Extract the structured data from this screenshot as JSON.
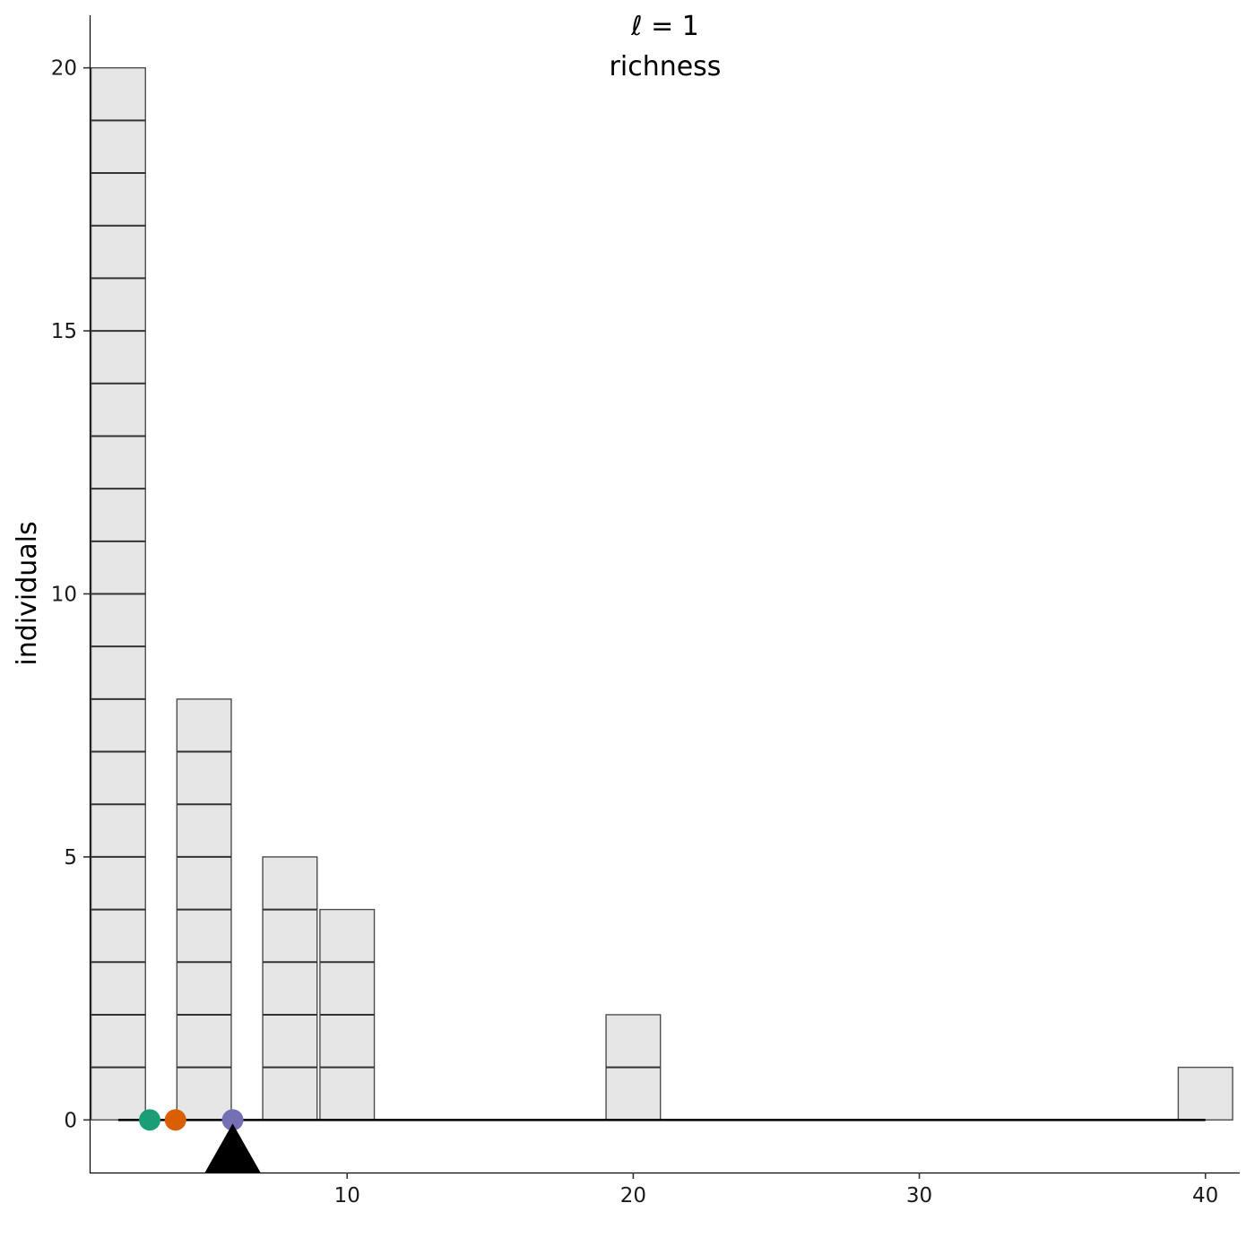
{
  "chart_data": {
    "type": "dotplot",
    "title": "ℓ = 1",
    "subtitle": "richness",
    "ylabel": "individuals",
    "xlabel": "",
    "xlim": [
      1,
      41.2
    ],
    "ylim": [
      -1,
      21
    ],
    "x_ticks": [
      10,
      20,
      30,
      40
    ],
    "y_ticks": [
      0,
      5,
      10,
      15,
      20
    ],
    "bin_width": 1.9,
    "stacks": [
      {
        "x": 2,
        "count": 20
      },
      {
        "x": 5,
        "count": 8
      },
      {
        "x": 8,
        "count": 5
      },
      {
        "x": 10,
        "count": 4
      },
      {
        "x": 20,
        "count": 2
      },
      {
        "x": 40,
        "count": 1
      }
    ],
    "baseline": {
      "from": 2,
      "to": 40,
      "y": 0
    },
    "means": [
      {
        "x": 3.1,
        "color": "#1b9e77"
      },
      {
        "x": 4.0,
        "color": "#d95f02"
      },
      {
        "x": 6.0,
        "color": "#7570b3"
      }
    ],
    "pivot": {
      "x": 6.0,
      "color": "#000000"
    },
    "grid": false,
    "legend": "none"
  }
}
